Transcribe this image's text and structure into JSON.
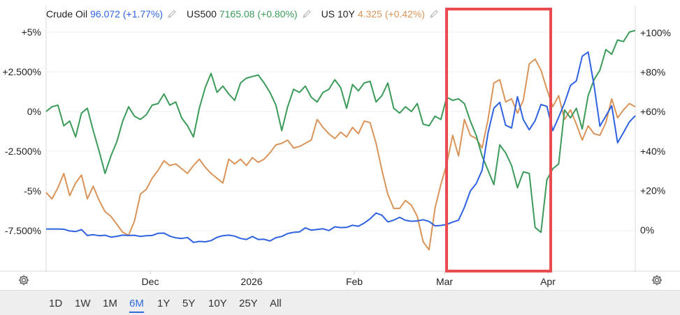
{
  "legend": [
    {
      "name": "Crude Oil",
      "value": "96.072 (+1.77%)",
      "color": "#2f62e0"
    },
    {
      "name": "US500",
      "value": "7165.08 (+0.80%)",
      "color": "#3c9a5a"
    },
    {
      "name": "US 10Y",
      "value": "4.325 (+0.42%)",
      "color": "#d9945a"
    }
  ],
  "range_buttons": [
    "1D",
    "1W",
    "1M",
    "6M",
    "1Y",
    "5Y",
    "10Y",
    "25Y",
    "All"
  ],
  "active_range": "6M",
  "highlight_color": "#e84c50",
  "chart_data": {
    "type": "line",
    "x_labels": [
      "Dec",
      "2026",
      "Feb",
      "Mar",
      "Apr"
    ],
    "left_axis": {
      "ticks": [
        5,
        2.5,
        0,
        -2.5,
        -5,
        -7.5
      ],
      "tick_labels": [
        "+5%",
        "+2.500%",
        "0%",
        "-2.500%",
        "-5%",
        "-7.500%"
      ],
      "range": [
        -10,
        5.5
      ]
    },
    "right_axis": {
      "ticks": [
        100,
        80,
        60,
        40,
        20,
        0
      ],
      "tick_labels": [
        "+100%",
        "+80%",
        "+60%",
        "+40%",
        "+20%",
        "0%"
      ],
      "range": [
        -20,
        105
      ]
    },
    "grid": true,
    "series": [
      {
        "name": "Crude Oil",
        "axis": "right",
        "color": "#2f62e0",
        "values": [
          0.5,
          0.5,
          0.5,
          0.4,
          -0.5,
          -0.8,
          0.2,
          -2.8,
          -2.4,
          -2.9,
          -2.7,
          -3.6,
          -3.2,
          -2.6,
          -2.8,
          -2.7,
          -3.3,
          -2.9,
          -2.8,
          -1.7,
          -1.6,
          -3.1,
          -4.0,
          -4.3,
          -3.8,
          -6.3,
          -5.8,
          -6.0,
          -5.4,
          -3.7,
          -2.9,
          -2.6,
          -3.1,
          -4.3,
          -4.8,
          -3.3,
          -4.8,
          -4.7,
          -5.6,
          -3.9,
          -3.3,
          -1.8,
          -1.2,
          -1.0,
          1.1,
          -0.1,
          0.3,
          0.6,
          -0.3,
          1.6,
          1.2,
          1.3,
          2.4,
          1.9,
          3.5,
          5.7,
          8.6,
          7.5,
          4.1,
          5.0,
          6.4,
          4.9,
          4.4,
          4.6,
          5.2,
          4.3,
          2.1,
          2.3,
          2.8,
          4.0,
          5.0,
          11.5,
          19.8,
          23.5,
          30.3,
          49.2,
          61.8,
          64.7,
          53.1,
          51.7,
          67.6,
          55.9,
          50.8,
          55.4,
          63.6,
          62.7,
          50.4,
          57.2,
          64.4,
          73.3,
          75.6,
          88.1,
          90.2,
          73.4,
          52.6,
          57.8,
          63.0,
          44.2,
          49.4,
          54.8,
          57.9
        ],
        "highlight_start": 75,
        "highlight_end": 96
      },
      {
        "name": "US500",
        "axis": "left",
        "color": "#3c9a5a",
        "values": [
          0.0,
          0.3,
          0.4,
          -0.9,
          -0.6,
          -1.6,
          -0.1,
          0.2,
          -1.2,
          -2.5,
          -3.9,
          -2.8,
          -1.9,
          -0.6,
          0.3,
          -0.3,
          -0.5,
          -0.2,
          0.4,
          0.5,
          1.1,
          0.4,
          0.6,
          -0.4,
          -0.9,
          -1.6,
          0.2,
          1.5,
          2.4,
          1.2,
          1.6,
          1.1,
          0.7,
          1.8,
          2.1,
          2.2,
          2.3,
          1.8,
          1.2,
          0.4,
          -1.2,
          0.3,
          1.4,
          1.2,
          1.6,
          0.9,
          0.6,
          1.2,
          1.4,
          2.0,
          1.5,
          0.2,
          1.7,
          1.3,
          1.8,
          1.9,
          0.6,
          1.0,
          1.8,
          0.2,
          -0.1,
          0.3,
          0.0,
          0.5,
          -0.8,
          -0.9,
          -0.3,
          -0.5,
          0.9,
          0.7,
          0.8,
          0.5,
          -0.6,
          -1.5,
          -2.8,
          -3.7,
          -4.6,
          -2.1,
          -2.6,
          -3.4,
          -4.8,
          -3.8,
          -3.9,
          -7.3,
          -7.6,
          -4.3,
          -3.6,
          -3.3,
          0.1,
          -0.4,
          0.2,
          -1.1,
          1.0,
          2.0,
          2.6,
          3.9,
          3.6,
          4.5,
          4.4,
          5.0,
          5.1
        ],
        "highlight_start": 75,
        "highlight_end": 90
      },
      {
        "name": "US 10Y",
        "axis": "left",
        "color": "#d9945a",
        "values": [
          -5.1,
          -5.5,
          -4.8,
          -3.9,
          -5.3,
          -4.5,
          -4.0,
          -5.5,
          -4.7,
          -5.6,
          -6.3,
          -6.6,
          -7.1,
          -7.6,
          -7.8,
          -6.9,
          -5.2,
          -4.9,
          -4.2,
          -3.7,
          -3.1,
          -3.4,
          -3.3,
          -3.6,
          -3.9,
          -3.4,
          -3.0,
          -3.5,
          -3.9,
          -4.2,
          -4.5,
          -3.0,
          -3.3,
          -3.0,
          -3.4,
          -2.9,
          -3.2,
          -3.0,
          -2.6,
          -2.1,
          -2.0,
          -1.8,
          -2.3,
          -2.2,
          -2.0,
          -1.8,
          -0.5,
          -1.0,
          -1.4,
          -1.7,
          -1.3,
          -1.6,
          -1.0,
          -1.4,
          -0.6,
          -0.7,
          -2.0,
          -3.7,
          -5.2,
          -6.1,
          -6.1,
          -5.6,
          -5.9,
          -6.6,
          -8.2,
          -8.7,
          -6.1,
          -4.6,
          -3.3,
          -1.5,
          -2.8,
          -0.5,
          -1.5,
          -1.7,
          -2.3,
          -0.5,
          1.8,
          2.0,
          0.6,
          0.8,
          -0.1,
          0.7,
          3.0,
          3.3,
          2.6,
          1.4,
          0.3,
          1.0,
          -0.5,
          0.1,
          -0.8,
          -1.8,
          -0.9,
          -1.4,
          -1.5,
          -0.7,
          0.8,
          -0.4,
          0.1,
          0.5,
          0.3
        ],
        "highlight_start": 64,
        "highlight_end": 90
      }
    ]
  }
}
